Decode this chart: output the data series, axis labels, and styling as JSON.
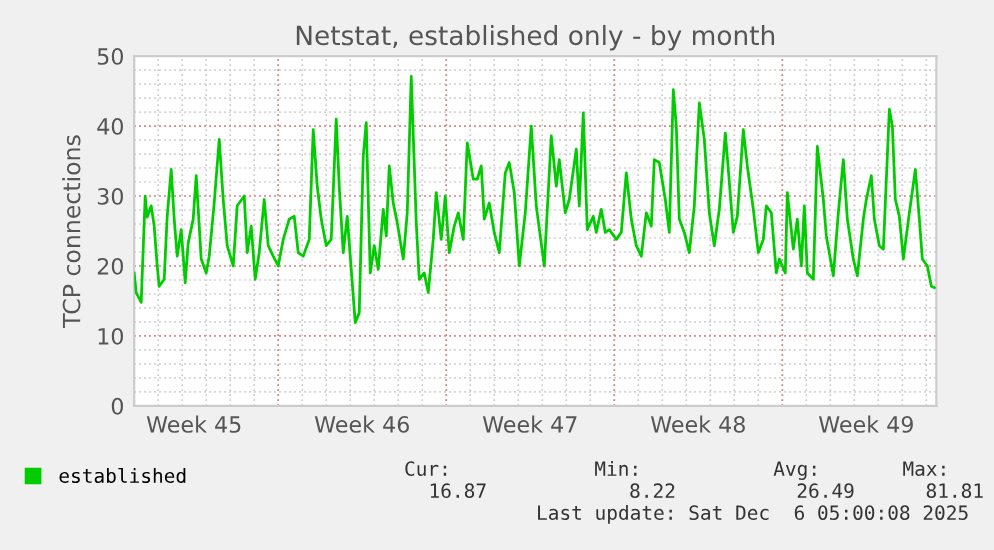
{
  "chart_data": {
    "type": "line",
    "title": "Netstat, established only - by month",
    "ylabel": "TCP connections",
    "xlim": [
      "2025-11-04T00:00",
      "2025-12-07T10:00"
    ],
    "ylim": [
      0,
      50
    ],
    "yticks": [
      0,
      10,
      20,
      30,
      40,
      50
    ],
    "xticks": [
      {
        "value": "2025-11-06T12:00",
        "label": "Week 45"
      },
      {
        "value": "2025-11-10T00:00",
        "label": null
      },
      {
        "value": "2025-11-13T12:00",
        "label": "Week 46"
      },
      {
        "value": "2025-11-17T00:00",
        "label": null
      },
      {
        "value": "2025-11-20T12:00",
        "label": "Week 47"
      },
      {
        "value": "2025-11-24T00:00",
        "label": null
      },
      {
        "value": "2025-11-27T12:00",
        "label": "Week 48"
      },
      {
        "value": "2025-12-01T00:00",
        "label": null
      },
      {
        "value": "2025-12-04T12:00",
        "label": "Week 49"
      }
    ],
    "grid": true,
    "legend": "bottom left",
    "marker": "none",
    "line_style": "solid",
    "annotations": [
      "Cur:",
      "Min:",
      "Avg:",
      "Max:",
      "16.87",
      "8.22",
      "26.49",
      "81.81",
      "Last update: Sat Dec  6 05:00:08 2025"
    ],
    "series": [
      {
        "name": "established",
        "color": "#00cc00",
        "x": [
          "2025-11-04T00:00",
          "2025-11-04T02:00",
          "2025-11-04T07:00",
          "2025-11-04T11:00",
          "2025-11-04T13:00",
          "2025-11-04T17:00",
          "2025-11-04T20:00",
          "2025-11-04T23:00",
          "2025-11-05T01:00",
          "2025-11-05T06:00",
          "2025-11-05T09:00",
          "2025-11-05T13:00",
          "2025-11-05T16:00",
          "2025-11-05T19:00",
          "2025-11-05T23:00",
          "2025-11-06T03:00",
          "2025-11-06T06:00",
          "2025-11-06T11:00",
          "2025-11-06T14:00",
          "2025-11-06T19:00",
          "2025-11-07T00:00",
          "2025-11-07T03:00",
          "2025-11-07T08:00",
          "2025-11-07T13:00",
          "2025-11-07T17:00",
          "2025-11-07T21:00",
          "2025-11-08T03:00",
          "2025-11-08T07:00",
          "2025-11-08T14:00",
          "2025-11-08T17:00",
          "2025-11-08T21:00",
          "2025-11-09T01:00",
          "2025-11-09T05:00",
          "2025-11-09T10:00",
          "2025-11-09T14:00",
          "2025-11-09T19:00",
          "2025-11-10T00:00",
          "2025-11-10T05:00",
          "2025-11-10T11:00",
          "2025-11-10T16:00",
          "2025-11-10T20:00",
          "2025-11-11T01:00",
          "2025-11-11T07:00",
          "2025-11-11T11:00",
          "2025-11-11T15:00",
          "2025-11-11T19:00",
          "2025-11-12T00:00",
          "2025-11-12T05:00",
          "2025-11-12T10:00",
          "2025-11-12T13:00",
          "2025-11-12T17:00",
          "2025-11-12T21:00",
          "2025-11-13T01:00",
          "2025-11-13T05:00",
          "2025-11-13T09:00",
          "2025-11-13T13:00",
          "2025-11-13T16:00",
          "2025-11-13T20:00",
          "2025-11-14T00:00",
          "2025-11-14T04:00",
          "2025-11-14T09:00",
          "2025-11-14T12:00",
          "2025-11-14T15:00",
          "2025-11-14T19:00",
          "2025-11-14T23:00",
          "2025-11-15T05:00",
          "2025-11-15T09:00",
          "2025-11-15T13:00",
          "2025-11-15T18:00",
          "2025-11-15T21:00",
          "2025-11-16T02:00",
          "2025-11-16T06:00",
          "2025-11-16T11:00",
          "2025-11-16T14:00",
          "2025-11-16T19:00",
          "2025-11-16T23:00",
          "2025-11-17T03:00",
          "2025-11-17T08:00",
          "2025-11-17T12:00",
          "2025-11-17T17:00",
          "2025-11-17T21:00",
          "2025-11-18T03:00",
          "2025-11-18T07:00",
          "2025-11-18T11:00",
          "2025-11-18T14:00",
          "2025-11-18T19:00",
          "2025-11-19T00:00",
          "2025-11-19T05:00",
          "2025-11-19T11:00",
          "2025-11-19T15:00",
          "2025-11-19T20:00",
          "2025-11-20T01:00",
          "2025-11-20T07:00",
          "2025-11-20T13:00",
          "2025-11-20T18:00",
          "2025-11-21T02:00",
          "2025-11-21T09:00",
          "2025-11-21T14:00",
          "2025-11-21T17:00",
          "2025-11-21T23:00",
          "2025-11-22T03:00",
          "2025-11-22T10:00",
          "2025-11-22T13:00",
          "2025-11-22T17:00",
          "2025-11-22T21:00",
          "2025-11-23T03:00",
          "2025-11-23T06:00",
          "2025-11-23T11:00",
          "2025-11-23T15:00",
          "2025-11-23T19:00",
          "2025-11-24T02:00",
          "2025-11-24T07:00",
          "2025-11-24T12:00",
          "2025-11-24T17:00",
          "2025-11-24T22:00",
          "2025-11-25T03:00",
          "2025-11-25T08:00",
          "2025-11-25T13:00",
          "2025-11-25T16:00",
          "2025-11-25T21:00",
          "2025-11-26T03:00",
          "2025-11-26T07:00",
          "2025-11-26T11:00",
          "2025-11-26T14:00",
          "2025-11-26T17:00",
          "2025-11-26T22:00",
          "2025-11-27T03:00",
          "2025-11-27T08:00",
          "2025-11-27T13:00",
          "2025-11-27T18:00",
          "2025-11-27T23:00",
          "2025-11-28T04:00",
          "2025-11-28T09:00",
          "2025-11-28T15:00",
          "2025-11-28T18:00",
          "2025-11-28T23:00",
          "2025-11-29T03:00",
          "2025-11-29T09:00",
          "2025-11-29T13:00",
          "2025-11-29T19:00",
          "2025-11-30T00:00",
          "2025-11-30T05:00",
          "2025-11-30T08:00",
          "2025-11-30T13:00",
          "2025-11-30T18:00",
          "2025-11-30T21:00",
          "2025-12-01T03:00",
          "2025-12-01T05:00",
          "2025-12-01T11:00",
          "2025-12-01T15:00",
          "2025-12-01T19:00",
          "2025-12-01T22:00",
          "2025-12-02T01:00",
          "2025-12-02T07:00",
          "2025-12-02T11:00",
          "2025-12-02T17:00",
          "2025-12-02T20:00",
          "2025-12-03T03:00",
          "2025-12-03T08:00",
          "2025-12-03T13:00",
          "2025-12-03T17:00",
          "2025-12-03T23:00",
          "2025-12-04T03:00",
          "2025-12-04T09:00",
          "2025-12-04T12:00",
          "2025-12-04T17:00",
          "2025-12-04T20:00",
          "2025-12-05T01:00",
          "2025-12-05T05:00",
          "2025-12-05T11:00",
          "2025-12-05T14:00",
          "2025-12-05T17:00",
          "2025-12-05T21:00",
          "2025-12-06T01:00",
          "2025-12-06T07:00",
          "2025-12-06T13:00",
          "2025-12-06T17:00",
          "2025-12-06T20:00",
          "2025-12-07T01:00",
          "2025-12-07T05:00",
          "2025-12-07T08:00"
        ],
        "values": [
          19.0,
          16.2,
          14.8,
          30,
          27,
          28.6,
          25.7,
          20,
          17.1,
          18.1,
          27.1,
          33.8,
          26.7,
          21.4,
          25.2,
          17.6,
          23.3,
          26.7,
          32.9,
          21,
          19,
          21.4,
          29,
          38.1,
          29.5,
          22.9,
          20,
          28.6,
          30,
          21.9,
          25.7,
          18.1,
          21.9,
          29.5,
          22.9,
          21.4,
          20,
          23.8,
          26.7,
          27.1,
          21.9,
          21.4,
          23.8,
          39.5,
          31.4,
          26.7,
          22.9,
          23.8,
          41,
          31.4,
          21.9,
          27.1,
          19.5,
          11.9,
          13.3,
          35.7,
          40.5,
          19,
          22.9,
          19.5,
          28.1,
          24.3,
          34.3,
          29,
          26.2,
          21,
          27.6,
          47.1,
          26.2,
          18.1,
          19,
          16.2,
          23.8,
          30.5,
          23.8,
          30,
          21.9,
          25.7,
          27.6,
          23.8,
          37.6,
          32.4,
          32.4,
          34.3,
          26.7,
          29,
          24.8,
          21.9,
          33.3,
          34.8,
          30.5,
          20,
          27.6,
          40,
          28.6,
          20,
          38.6,
          31.4,
          35.2,
          27.6,
          29.5,
          36.7,
          28.6,
          41.9,
          25.2,
          27.1,
          24.8,
          28.1,
          24.8,
          25.2,
          23.8,
          24.8,
          33.3,
          26.7,
          22.9,
          21.4,
          27.6,
          25.7,
          35.2,
          34.8,
          29.5,
          24.8,
          45.2,
          40,
          26.7,
          24.8,
          21.9,
          28.6,
          43.3,
          38.1,
          27.6,
          22.9,
          28.1,
          39,
          33.8,
          24.8,
          27.1,
          39.5,
          34.3,
          28.1,
          21.9,
          23.8,
          28.6,
          27.6,
          19,
          21,
          19,
          30.5,
          22.4,
          26.7,
          20,
          28.6,
          19,
          18.1,
          37.1,
          29.5,
          24.3,
          18.6,
          27.6,
          35.2,
          26.7,
          21,
          18.6,
          26.7,
          29.5,
          32.9,
          26.7,
          22.9,
          22.4,
          42.4,
          40,
          29.5,
          27.1,
          21,
          27.6,
          33.8,
          26.7,
          21,
          20,
          17.1,
          16.9
        ]
      }
    ]
  }
}
